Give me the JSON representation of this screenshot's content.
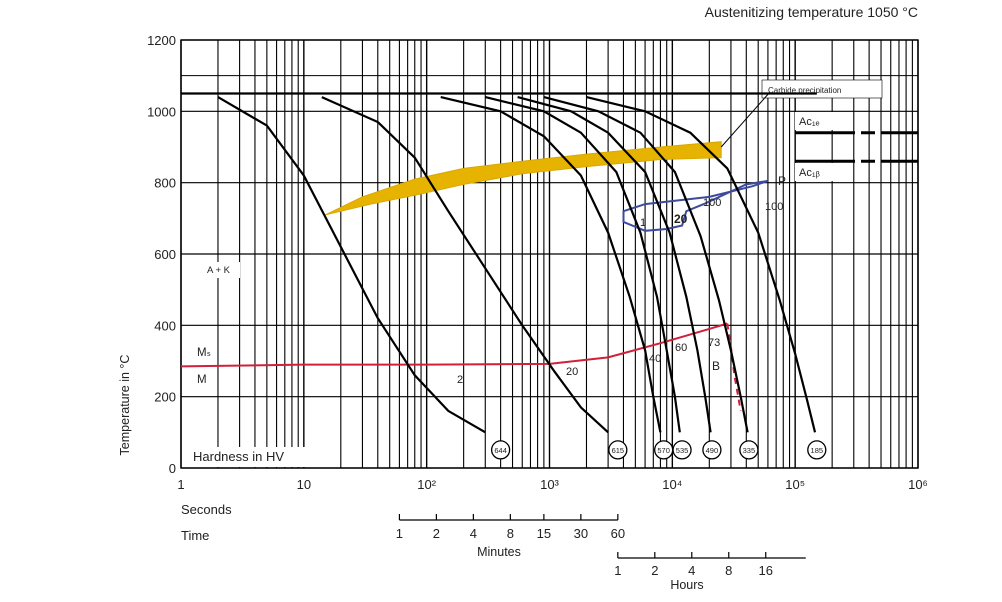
{
  "chart_data": {
    "type": "line",
    "title": "Austenitizing temperature 1050 °C",
    "ylabel": "Temperature in °C",
    "xlabel": "Seconds",
    "x_scale": "log",
    "xlim": [
      1,
      1000000
    ],
    "ylim": [
      0,
      1200
    ],
    "grid": true,
    "y_ticks": [
      0,
      200,
      400,
      600,
      800,
      1000,
      1200
    ],
    "x_ticks": [
      {
        "value": 1,
        "label": "1"
      },
      {
        "value": 10,
        "label": "10"
      },
      {
        "value": 100,
        "label": "10²"
      },
      {
        "value": 1000,
        "label": "10³"
      },
      {
        "value": 10000,
        "label": "10⁴"
      },
      {
        "value": 100000,
        "label": "10⁵"
      },
      {
        "value": 1000000,
        "label": "10⁶"
      }
    ],
    "time_label": "Time",
    "minutes_label": "Minutes",
    "minutes_ticks": [
      1,
      2,
      4,
      8,
      15,
      30,
      60
    ],
    "hours_label": "Hours",
    "hours_ticks": [
      1,
      2,
      4,
      8,
      16
    ],
    "hardness_label": "Hardness in HV",
    "cooling_curves": [
      {
        "hv": "644",
        "end": [
          400,
          90
        ],
        "points": [
          [
            2,
            1040
          ],
          [
            5,
            960
          ],
          [
            10,
            820
          ],
          [
            20,
            620
          ],
          [
            40,
            420
          ],
          [
            80,
            260
          ],
          [
            150,
            160
          ],
          [
            300,
            100
          ]
        ]
      },
      {
        "hv": "615",
        "end": [
          3600,
          90
        ],
        "points": [
          [
            14,
            1040
          ],
          [
            40,
            970
          ],
          [
            80,
            870
          ],
          [
            150,
            720
          ],
          [
            300,
            560
          ],
          [
            600,
            400
          ],
          [
            1100,
            270
          ],
          [
            1800,
            170
          ],
          [
            3000,
            100
          ]
        ]
      },
      {
        "hv": "570",
        "end": [
          8500,
          90
        ],
        "points": [
          [
            130,
            1040
          ],
          [
            400,
            1000
          ],
          [
            900,
            930
          ],
          [
            1800,
            820
          ],
          [
            3000,
            660
          ],
          [
            4500,
            480
          ],
          [
            6000,
            330
          ],
          [
            7000,
            200
          ],
          [
            8000,
            100
          ]
        ]
      },
      {
        "hv": "535",
        "end": [
          12000,
          90
        ],
        "points": [
          [
            300,
            1040
          ],
          [
            900,
            1000
          ],
          [
            1800,
            940
          ],
          [
            3500,
            830
          ],
          [
            5500,
            660
          ],
          [
            7500,
            480
          ],
          [
            9000,
            330
          ],
          [
            10500,
            200
          ],
          [
            11500,
            100
          ]
        ]
      },
      {
        "hv": "490",
        "end": [
          21000,
          90
        ],
        "points": [
          [
            550,
            1040
          ],
          [
            1500,
            1000
          ],
          [
            3000,
            940
          ],
          [
            6000,
            830
          ],
          [
            9500,
            660
          ],
          [
            13000,
            480
          ],
          [
            16000,
            330
          ],
          [
            18500,
            200
          ],
          [
            20500,
            100
          ]
        ]
      },
      {
        "hv": "335",
        "end": [
          42000,
          90
        ],
        "points": [
          [
            900,
            1040
          ],
          [
            2500,
            1000
          ],
          [
            5500,
            940
          ],
          [
            10500,
            830
          ],
          [
            17000,
            650
          ],
          [
            24000,
            470
          ],
          [
            30000,
            330
          ],
          [
            36000,
            200
          ],
          [
            41000,
            100
          ]
        ]
      },
      {
        "hv": "185",
        "end": [
          150000,
          90
        ],
        "points": [
          [
            2000,
            1040
          ],
          [
            6000,
            1000
          ],
          [
            14000,
            940
          ],
          [
            28000,
            840
          ],
          [
            50000,
            660
          ],
          [
            75000,
            470
          ],
          [
            100000,
            320
          ],
          [
            125000,
            190
          ],
          [
            145000,
            100
          ]
        ]
      }
    ],
    "labels": {
      "carbide": "Carbide precipitation",
      "ak": "A + K",
      "m": "M",
      "ms": "Mₛ",
      "ac1e": "Ac₁ₑ",
      "ac1b": "Ac₁ᵦ",
      "p": "P",
      "b": "B",
      "p_one": "1",
      "p_twenty": "20",
      "p_100a": "100",
      "p_100b": "100",
      "c2": "2",
      "c20": "20",
      "c40": "40",
      "c60": "60",
      "c73": "73"
    }
  }
}
